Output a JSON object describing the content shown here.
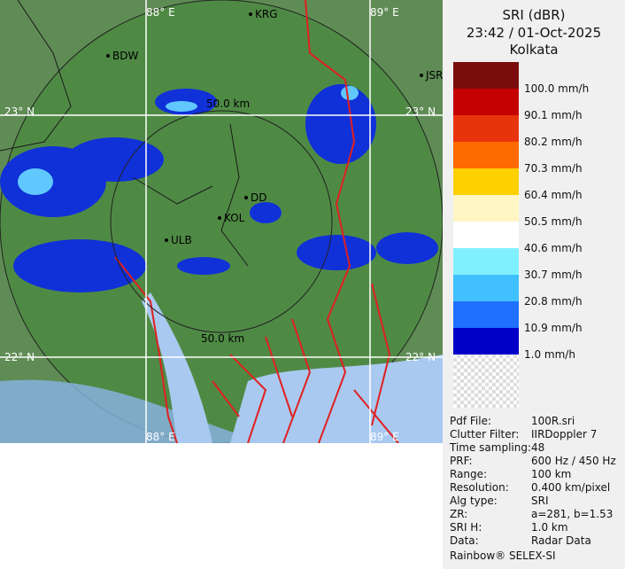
{
  "map": {
    "grid_labels": [
      "88° E",
      "89° E",
      "23° N",
      "23° N",
      "22° N",
      "22° N",
      "88° E",
      "89° E"
    ],
    "places": [
      "KRG",
      "BDW",
      "JSR",
      "DD",
      "KOL",
      "ULB"
    ],
    "range_labels": [
      "50.0 km",
      "50.0 km"
    ]
  },
  "panel": {
    "title": "SRI (dBR)",
    "datetime": "23:42 / 01-Oct-2025",
    "station": "Kolkata",
    "legend_colors": [
      "#7a0c0c",
      "#c40000",
      "#e8340c",
      "#ff6a00",
      "#ffd000",
      "#fff6c4",
      "#ffffff",
      "#80f0ff",
      "#40c0ff",
      "#2070ff",
      "#0000c8"
    ],
    "legend_labels": [
      "100.0 mm/h",
      "90.1 mm/h",
      "80.2 mm/h",
      "70.3 mm/h",
      "60.4 mm/h",
      "50.5 mm/h",
      "40.6 mm/h",
      "30.7 mm/h",
      "20.8 mm/h",
      "10.9 mm/h",
      "1.0 mm/h"
    ],
    "info": [
      [
        "Pdf File:",
        "100R.sri"
      ],
      [
        "Clutter Filter:",
        "IIRDoppler 7"
      ],
      [
        "Time sampling:",
        "48"
      ],
      [
        "PRF:",
        "600 Hz / 450 Hz"
      ],
      [
        "Range:",
        "100 km"
      ],
      [
        "Resolution:",
        "0.400 km/pixel"
      ],
      [
        "Alg type:",
        "SRI"
      ],
      [
        "ZR:",
        "a=281, b=1.53"
      ],
      [
        "SRI H:",
        "1.0 km"
      ],
      [
        "Data:",
        "Radar Data"
      ]
    ],
    "footer": "Rainbow® SELEX-SI"
  }
}
